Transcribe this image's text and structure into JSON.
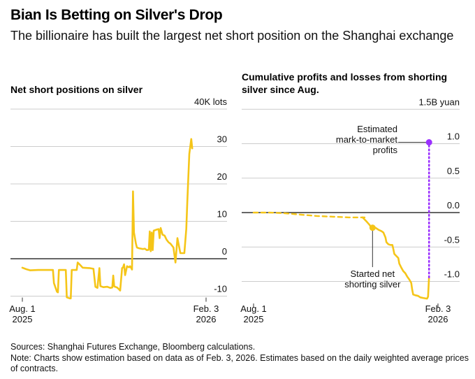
{
  "header": {
    "title": "Bian Is Betting on Silver's Drop",
    "subtitle": "The billionaire has built the largest net short position on the Shanghai exchange"
  },
  "footer": {
    "sources": "Sources: Shanghai Futures Exchange, Bloomberg calculations.",
    "note": "Note: Charts show estimation based on data as of Feb. 3, 2026. Estimates based on the daily weighted average prices of contracts."
  },
  "colors": {
    "series": "#F5C518",
    "annotation_purple": "#9B30FF",
    "zero_line": "#333333",
    "grid": "#CCCCCC",
    "annotation_line": "#333333"
  },
  "chart_data": [
    {
      "type": "line",
      "title": "Net short positions on silver",
      "unit_label": "40K lots",
      "xlabel": "",
      "ylabel": "K lots",
      "ylim": [
        -12,
        40
      ],
      "yticks": [
        40,
        30,
        20,
        10,
        0,
        -10
      ],
      "ytick_labels": [
        "40K lots",
        "30",
        "20",
        "10",
        "0",
        "-10"
      ],
      "xlim": [
        0,
        186
      ],
      "xticks": [
        {
          "day": 0,
          "label": [
            "Aug. 1",
            "2025"
          ]
        },
        {
          "day": 186,
          "label": [
            "Feb. 3",
            "2026"
          ]
        }
      ],
      "grid": true,
      "x_unit": "days since Aug. 1, 2025",
      "series": [
        {
          "name": "Net short position",
          "points": [
            [
              0,
              -2.4
            ],
            [
              4,
              -2.8
            ],
            [
              8,
              -3.1
            ],
            [
              16,
              -3.0
            ],
            [
              26,
              -3.0
            ],
            [
              31,
              -3.0
            ],
            [
              32,
              -6.5
            ],
            [
              35,
              -8.8
            ],
            [
              36,
              -9.0
            ],
            [
              37,
              -3.0
            ],
            [
              43,
              -3.0
            ],
            [
              44,
              -3.0
            ],
            [
              45,
              -10.3
            ],
            [
              48,
              -10.6
            ],
            [
              49,
              -10.6
            ],
            [
              50,
              -3.0
            ],
            [
              53,
              -3.0
            ],
            [
              55,
              -3.0
            ],
            [
              56,
              -1.0
            ],
            [
              59,
              -1.8
            ],
            [
              61,
              -2.4
            ],
            [
              68,
              -2.5
            ],
            [
              70,
              -2.6
            ],
            [
              72,
              -2.7
            ],
            [
              74,
              -7.5
            ],
            [
              76,
              -7.8
            ],
            [
              78,
              -2.5
            ],
            [
              79,
              -7.3
            ],
            [
              82,
              -7.6
            ],
            [
              86,
              -7.5
            ],
            [
              89,
              -7.8
            ],
            [
              91,
              -7.7
            ],
            [
              92,
              -4.5
            ],
            [
              93,
              -7.4
            ],
            [
              96,
              -7.7
            ],
            [
              98,
              -8.2
            ],
            [
              99,
              -8.5
            ],
            [
              101,
              -2.5
            ],
            [
              102,
              -2.3
            ],
            [
              103,
              -1.5
            ],
            [
              104,
              -4.4
            ],
            [
              106,
              -2.0
            ],
            [
              108,
              -2.3
            ],
            [
              109,
              -2.0
            ],
            [
              110,
              -2.4
            ],
            [
              111,
              -2.9
            ],
            [
              112,
              18.0
            ],
            [
              113,
              7.0
            ],
            [
              115,
              4.0
            ],
            [
              116,
              3.0
            ],
            [
              118,
              2.8
            ],
            [
              122,
              2.6
            ],
            [
              124,
              2.7
            ],
            [
              126,
              2.3
            ],
            [
              128,
              2.4
            ],
            [
              129,
              7.3
            ],
            [
              130,
              2.0
            ],
            [
              131,
              7.0
            ],
            [
              132,
              2.3
            ],
            [
              133,
              7.5
            ],
            [
              136,
              7.8
            ],
            [
              138,
              7.9
            ],
            [
              139,
              5.5
            ],
            [
              140,
              8.2
            ],
            [
              142,
              6.4
            ],
            [
              144,
              6.2
            ],
            [
              146,
              5.1
            ],
            [
              148,
              4.4
            ],
            [
              150,
              4.0
            ],
            [
              153,
              3.0
            ],
            [
              155,
              -1.0
            ],
            [
              157,
              5.5
            ],
            [
              160,
              1.5
            ],
            [
              163,
              1.5
            ],
            [
              164,
              1.5
            ],
            [
              166,
              8.0
            ],
            [
              167,
              15.0
            ],
            [
              169,
              28.0
            ],
            [
              171,
              32.0
            ],
            [
              172,
              29.5
            ]
          ]
        }
      ]
    },
    {
      "type": "line",
      "title": "Cumulative profits and losses from shorting silver since Aug.",
      "unit_label": "1.5B yuan",
      "xlabel": "",
      "ylabel": "B yuan",
      "ylim": [
        -1.35,
        1.5
      ],
      "yticks": [
        1.5,
        1.0,
        0.5,
        0.0,
        -0.5,
        -1.0
      ],
      "ytick_labels": [
        "1.5B yuan",
        "1.0",
        "0.5",
        "0.0",
        "-0.5",
        "-1.0"
      ],
      "xlim": [
        0,
        186
      ],
      "xticks": [
        {
          "day": 0,
          "label": [
            "Aug. 1",
            "2025"
          ]
        },
        {
          "day": 186,
          "label": [
            "Feb. 3",
            "2026"
          ]
        }
      ],
      "grid": true,
      "x_unit": "days since Aug. 1, 2025",
      "series": [
        {
          "name": "Cumulative P&L (net long period, faint/dashed)",
          "style": "dashed",
          "points": [
            [
              0,
              0.0
            ],
            [
              16,
              0.0
            ],
            [
              32,
              -0.01
            ],
            [
              48,
              -0.03
            ],
            [
              64,
              -0.05
            ],
            [
              80,
              -0.06
            ],
            [
              96,
              -0.07
            ],
            [
              112,
              -0.07
            ]
          ]
        },
        {
          "name": "Cumulative P&L",
          "points": [
            [
              110,
              -0.07
            ],
            [
              114,
              -0.13
            ],
            [
              117,
              -0.18
            ],
            [
              119,
              -0.22
            ],
            [
              121,
              -0.23
            ],
            [
              123,
              -0.22
            ],
            [
              126,
              -0.25
            ],
            [
              129,
              -0.27
            ],
            [
              131,
              -0.29
            ],
            [
              133,
              -0.36
            ],
            [
              134,
              -0.43
            ],
            [
              136,
              -0.46
            ],
            [
              138,
              -0.47
            ],
            [
              140,
              -0.47
            ],
            [
              141,
              -0.53
            ],
            [
              142,
              -0.6
            ],
            [
              144,
              -0.63
            ],
            [
              146,
              -0.66
            ],
            [
              147,
              -0.74
            ],
            [
              149,
              -0.8
            ],
            [
              151,
              -0.85
            ],
            [
              153,
              -0.88
            ],
            [
              155,
              -0.93
            ],
            [
              157,
              -0.97
            ],
            [
              159,
              -1.02
            ],
            [
              160,
              -1.12
            ],
            [
              161,
              -1.19
            ],
            [
              163,
              -1.2
            ],
            [
              166,
              -1.21
            ],
            [
              168,
              -1.23
            ],
            [
              171,
              -1.24
            ],
            [
              175,
              -1.25
            ],
            [
              176,
              -1.22
            ],
            [
              177,
              -0.94
            ]
          ]
        }
      ],
      "annotations": [
        {
          "id": "started",
          "text": [
            "Started net",
            "shorting silver"
          ],
          "point": [
            120,
            -0.22
          ],
          "color": "#F5C518"
        },
        {
          "id": "mtm",
          "text": [
            "Estimated",
            "mark-to-market",
            "profits"
          ],
          "point": [
            177,
            1.02
          ],
          "from_value": -0.94,
          "color": "#9B30FF",
          "style": "dotted"
        }
      ]
    }
  ]
}
